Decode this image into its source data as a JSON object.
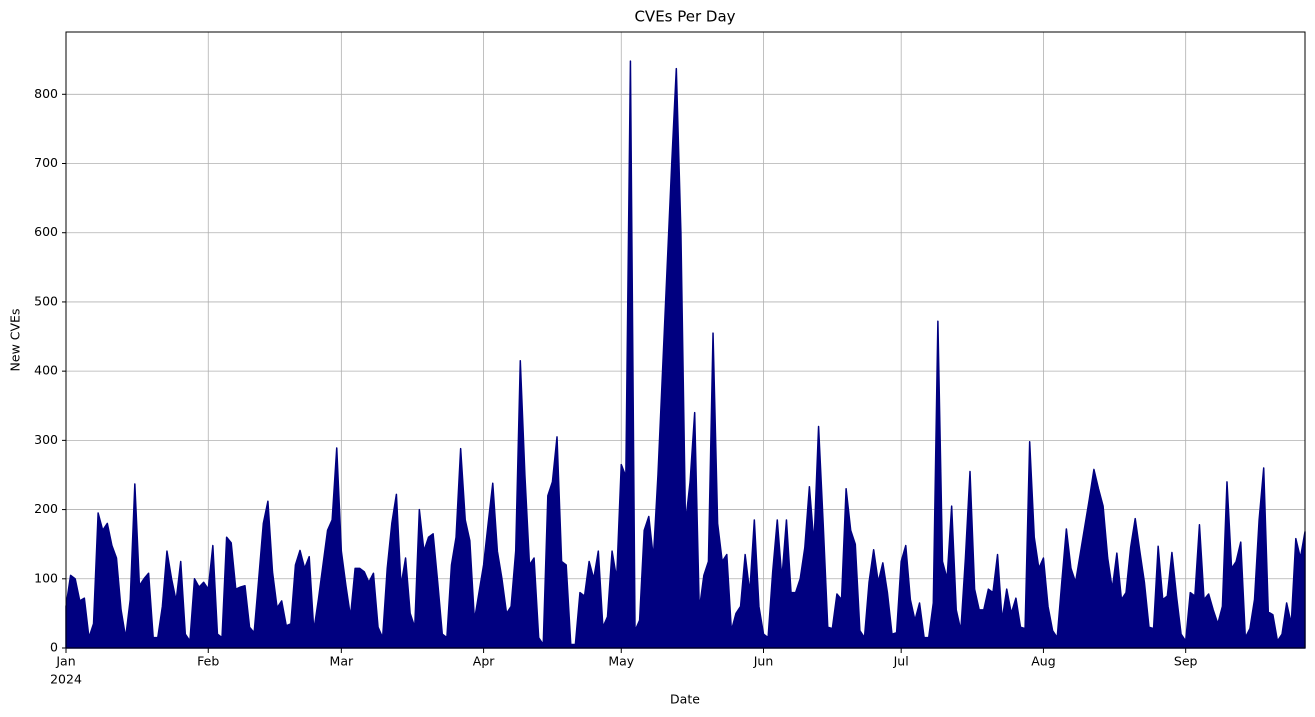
{
  "chart_data": {
    "type": "area",
    "title": "CVEs Per Day",
    "x_label": "Date",
    "y_label": "New CVEs",
    "x_sublabel": "2024",
    "x": [
      0,
      1,
      2,
      3,
      4,
      5,
      6,
      7,
      8,
      9,
      10,
      11,
      12,
      13,
      14,
      15,
      16,
      17,
      18,
      19,
      20,
      21,
      22,
      23,
      24,
      25,
      26,
      27,
      28,
      29,
      30,
      31,
      32,
      33,
      34,
      35,
      36,
      37,
      38,
      39,
      40,
      41,
      42,
      43,
      44,
      45,
      46,
      47,
      48,
      49,
      50,
      51,
      52,
      53,
      54,
      55,
      56,
      57,
      58,
      59,
      60,
      61,
      62,
      63,
      64,
      65,
      66,
      67,
      68,
      69,
      70,
      71,
      72,
      73,
      74,
      75,
      76,
      77,
      78,
      79,
      80,
      81,
      82,
      83,
      84,
      85,
      86,
      87,
      88,
      89,
      90,
      91,
      92,
      93,
      94,
      95,
      96,
      97,
      98,
      99,
      100,
      101,
      102,
      103,
      104,
      105,
      106,
      107,
      108,
      109,
      110,
      111,
      112,
      113,
      114,
      115,
      116,
      117,
      118,
      119,
      120,
      121,
      122,
      123,
      124,
      125,
      126,
      127,
      128,
      129,
      130,
      131,
      132,
      133,
      134,
      135,
      136,
      137,
      138,
      139,
      140,
      141,
      142,
      143,
      144,
      145,
      146,
      147,
      148,
      149,
      150,
      151,
      152,
      153,
      154,
      155,
      156,
      157,
      158,
      159,
      160,
      161,
      162,
      163,
      164,
      165,
      166,
      167,
      168,
      169,
      170,
      171,
      172,
      173,
      174,
      175,
      176,
      177,
      178,
      179,
      180,
      181,
      182,
      183,
      184,
      185,
      186,
      187,
      188,
      189,
      190,
      191,
      192,
      193,
      194,
      195,
      196,
      197,
      198,
      199,
      200,
      201,
      202,
      203,
      204,
      205,
      206,
      207,
      208,
      209,
      210,
      211,
      212,
      213,
      214,
      215,
      216,
      217,
      218,
      219,
      220,
      221,
      222,
      223,
      224,
      225,
      226,
      227,
      228,
      229,
      230,
      231,
      232,
      233,
      234,
      235,
      236,
      237,
      238,
      239,
      240,
      241,
      242,
      243,
      244,
      245,
      246,
      247,
      248,
      249,
      250,
      251,
      252,
      253,
      254,
      255,
      256,
      257,
      258,
      259,
      260,
      261,
      262,
      263,
      264,
      265,
      266,
      267,
      268,
      269,
      270
    ],
    "values": [
      60,
      105,
      100,
      68,
      72,
      15,
      35,
      195,
      170,
      180,
      148,
      130,
      55,
      15,
      70,
      237,
      90,
      100,
      108,
      15,
      15,
      60,
      140,
      100,
      68,
      125,
      20,
      10,
      100,
      88,
      95,
      85,
      148,
      20,
      15,
      160,
      152,
      85,
      88,
      90,
      30,
      22,
      100,
      180,
      212,
      110,
      58,
      68,
      32,
      35,
      120,
      141,
      115,
      132,
      25,
      70,
      120,
      170,
      185,
      289,
      140,
      90,
      45,
      115,
      115,
      110,
      95,
      108,
      30,
      15,
      115,
      180,
      222,
      90,
      130,
      50,
      30,
      200,
      140,
      160,
      165,
      95,
      20,
      15,
      120,
      160,
      288,
      185,
      155,
      40,
      80,
      120,
      180,
      238,
      140,
      100,
      50,
      60,
      140,
      415,
      250,
      120,
      130,
      15,
      5,
      220,
      240,
      305,
      125,
      120,
      5,
      5,
      80,
      75,
      125,
      100,
      140,
      30,
      45,
      140,
      100,
      265,
      248,
      848,
      25,
      40,
      170,
      190,
      130,
      250,
      400,
      550,
      700,
      837,
      600,
      180,
      240,
      340,
      55,
      105,
      125,
      455,
      180,
      125,
      135,
      25,
      50,
      60,
      135,
      80,
      185,
      60,
      20,
      15,
      110,
      185,
      100,
      185,
      80,
      80,
      100,
      145,
      233,
      150,
      320,
      180,
      30,
      28,
      78,
      70,
      230,
      170,
      150,
      25,
      15,
      95,
      142,
      95,
      123,
      80,
      20,
      22,
      125,
      148,
      70,
      40,
      65,
      15,
      15,
      65,
      472,
      125,
      100,
      205,
      55,
      25,
      130,
      255,
      85,
      55,
      55,
      85,
      80,
      135,
      40,
      85,
      50,
      72,
      30,
      28,
      298,
      160,
      115,
      130,
      60,
      25,
      15,
      95,
      172,
      115,
      95,
      135,
      175,
      215,
      258,
      230,
      205,
      130,
      85,
      137,
      70,
      80,
      145,
      187,
      140,
      95,
      30,
      28,
      147,
      70,
      75,
      138,
      75,
      20,
      10,
      80,
      75,
      178,
      70,
      78,
      55,
      35,
      60,
      240,
      115,
      125,
      153,
      15,
      28,
      70,
      185,
      260,
      52,
      48,
      10,
      20,
      65,
      35,
      158,
      130,
      168
    ],
    "color": "#000080",
    "xlim": [
      0,
      270
    ],
    "xticks": [
      {
        "value": 0,
        "label": "Jan"
      },
      {
        "value": 31,
        "label": "Feb"
      },
      {
        "value": 60,
        "label": "Mar"
      },
      {
        "value": 91,
        "label": "Apr"
      },
      {
        "value": 121,
        "label": "May"
      },
      {
        "value": 152,
        "label": "Jun"
      },
      {
        "value": 182,
        "label": "Jul"
      },
      {
        "value": 213,
        "label": "Aug"
      },
      {
        "value": 244,
        "label": "Sep"
      }
    ],
    "ylim": [
      0,
      890
    ],
    "yticks": [
      0,
      100,
      200,
      300,
      400,
      500,
      600,
      700,
      800
    ],
    "grid": true
  }
}
